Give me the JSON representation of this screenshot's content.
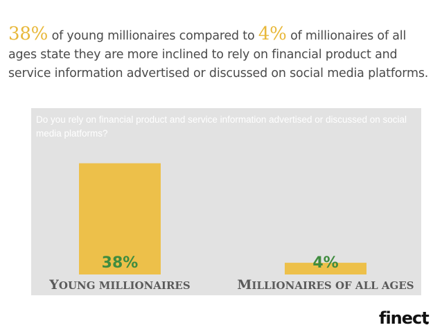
{
  "headline": {
    "pct_young": "38%",
    "part1": " of young millionaires compared to ",
    "pct_all": "4%",
    "part2": " of millionaires of all ages state they are more inclined to rely on financial product and service information advertised or discussed on social media platforms."
  },
  "colors": {
    "bar": "#edc04a",
    "panel": "#e2e2e2",
    "value_text": "#3f8c3f",
    "headline_accent": "#e8b83a"
  },
  "chart_data": {
    "type": "bar",
    "title": "Do you rely on financial product and service information advertised or discussed on social media platforms?",
    "categories": [
      "Young millionaires",
      "Millionaires of all ages"
    ],
    "values": [
      38,
      4
    ],
    "value_labels": [
      "38%",
      "4%"
    ],
    "ylim": [
      0,
      45
    ],
    "grid": false
  },
  "brand": {
    "logo_text": "finect"
  }
}
